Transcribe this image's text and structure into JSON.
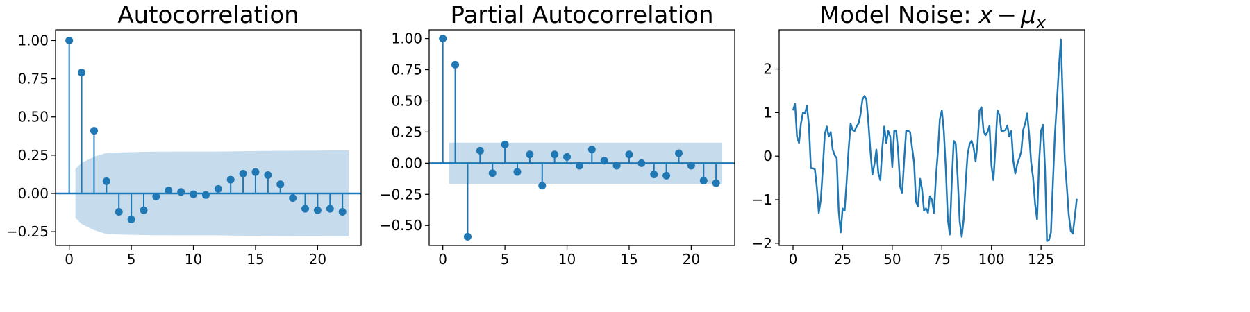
{
  "chart_data": [
    {
      "type": "stem",
      "title": "Autocorrelation",
      "xlim": [
        -1.1,
        23.5
      ],
      "ylim": [
        -0.34,
        1.07
      ],
      "xticks": [
        0,
        5,
        10,
        15,
        20
      ],
      "yticks": [
        -0.25,
        0.0,
        0.25,
        0.5,
        0.75,
        1.0
      ],
      "ytick_labels": [
        "−0.25",
        "0.00",
        "0.25",
        "0.50",
        "0.75",
        "1.00"
      ],
      "lags": [
        0,
        1,
        2,
        3,
        4,
        5,
        6,
        7,
        8,
        9,
        10,
        11,
        12,
        13,
        14,
        15,
        16,
        17,
        18,
        19,
        20,
        21,
        22
      ],
      "values": [
        1.0,
        0.79,
        0.41,
        0.08,
        -0.12,
        -0.17,
        -0.11,
        -0.02,
        0.02,
        0.01,
        -0.005,
        -0.01,
        0.03,
        0.09,
        0.13,
        0.14,
        0.12,
        0.06,
        -0.03,
        -0.1,
        -0.11,
        -0.1,
        -0.12
      ],
      "confidence_band": {
        "x": [
          0.5,
          1,
          2,
          3,
          4,
          5,
          6,
          7,
          8,
          9,
          10,
          11,
          12,
          13,
          14,
          15,
          16,
          17,
          18,
          19,
          20,
          21,
          22,
          22.5
        ],
        "upper": [
          0.16,
          0.2,
          0.24,
          0.265,
          0.268,
          0.27,
          0.272,
          0.273,
          0.273,
          0.274,
          0.274,
          0.274,
          0.274,
          0.275,
          0.276,
          0.277,
          0.278,
          0.279,
          0.279,
          0.28,
          0.28,
          0.281,
          0.281,
          0.281
        ]
      },
      "color": "#1f77b4",
      "band_color": "#c6dbec"
    },
    {
      "type": "stem",
      "title": "Partial Autocorrelation",
      "xlim": [
        -1.1,
        23.5
      ],
      "ylim": [
        -0.66,
        1.07
      ],
      "xticks": [
        0,
        5,
        10,
        15,
        20
      ],
      "yticks": [
        -0.5,
        -0.25,
        0.0,
        0.25,
        0.5,
        0.75,
        1.0
      ],
      "ytick_labels": [
        "−0.50",
        "−0.25",
        "0.00",
        "0.25",
        "0.50",
        "0.75",
        "1.00"
      ],
      "lags": [
        0,
        1,
        2,
        3,
        4,
        5,
        6,
        7,
        8,
        9,
        10,
        11,
        12,
        13,
        14,
        15,
        16,
        17,
        18,
        19,
        20,
        21,
        22
      ],
      "values": [
        1.0,
        0.79,
        -0.59,
        0.1,
        -0.08,
        0.15,
        -0.07,
        0.07,
        -0.18,
        0.07,
        0.05,
        -0.02,
        0.11,
        0.02,
        -0.02,
        0.07,
        0.0,
        -0.09,
        -0.1,
        0.08,
        -0.02,
        -0.14,
        -0.16
      ],
      "confidence_band": {
        "x": [
          0.5,
          22.5
        ],
        "upper": [
          0.165,
          0.165
        ]
      },
      "color": "#1f77b4",
      "band_color": "#c6dbec"
    },
    {
      "type": "line",
      "title": "Model Noise: ",
      "title_math": {
        "x": "x",
        "minus": "−",
        "mu": "μ",
        "sub": "x"
      },
      "xlim": [
        -7,
        147
      ],
      "ylim": [
        -2.05,
        2.9
      ],
      "xticks": [
        0,
        25,
        50,
        75,
        100,
        125
      ],
      "yticks": [
        -2,
        -1,
        0,
        1,
        2
      ],
      "ytick_labels": [
        "−2",
        "−1",
        "0",
        "1",
        "2"
      ],
      "x_start": 0,
      "values": [
        1.05,
        1.2,
        0.45,
        0.3,
        0.75,
        1.0,
        0.98,
        1.15,
        0.7,
        -0.28,
        -0.28,
        -0.3,
        -0.72,
        -1.3,
        -1.0,
        -0.28,
        0.5,
        0.68,
        0.45,
        0.55,
        0.15,
        0.02,
        -0.05,
        -1.25,
        -1.75,
        -1.2,
        -1.25,
        -0.6,
        0.15,
        0.75,
        0.6,
        0.58,
        0.68,
        0.75,
        0.95,
        1.3,
        1.38,
        1.3,
        0.75,
        0.12,
        -0.42,
        -0.2,
        0.15,
        -0.4,
        -0.55,
        0.2,
        0.68,
        0.3,
        0.58,
        0.45,
        -0.25,
        0.58,
        0.58,
        0.1,
        -0.7,
        -0.85,
        -0.1,
        0.58,
        0.58,
        0.55,
        0.2,
        -0.15,
        -1.05,
        -1.15,
        -0.52,
        -0.75,
        -1.25,
        -1.2,
        -1.3,
        -0.92,
        -1.0,
        -1.3,
        -0.5,
        0.1,
        0.85,
        1.05,
        0.58,
        -0.3,
        -1.45,
        -1.8,
        -0.58,
        0.35,
        0.28,
        -0.5,
        -1.5,
        -1.85,
        -1.45,
        -0.6,
        0.05,
        0.28,
        0.35,
        0.2,
        -0.12,
        0.3,
        1.05,
        1.12,
        0.58,
        0.48,
        0.55,
        0.7,
        -0.22,
        -0.55,
        0.2,
        1.05,
        0.95,
        0.58,
        0.58,
        0.6,
        0.7,
        0.45,
        0.58,
        -0.1,
        -0.4,
        -0.18,
        -0.05,
        0.1,
        0.6,
        0.75,
        0.98,
        0.5,
        -0.15,
        -0.5,
        -1.1,
        -1.45,
        -0.15,
        0.58,
        0.72,
        -0.3,
        -1.95,
        -1.92,
        -1.75,
        -0.58,
        0.5,
        1.25,
        2.05,
        2.68,
        1.2,
        -0.1,
        -0.7,
        -1.35,
        -1.72,
        -1.78,
        -1.4,
        -0.98
      ],
      "color": "#1f77b4"
    }
  ]
}
